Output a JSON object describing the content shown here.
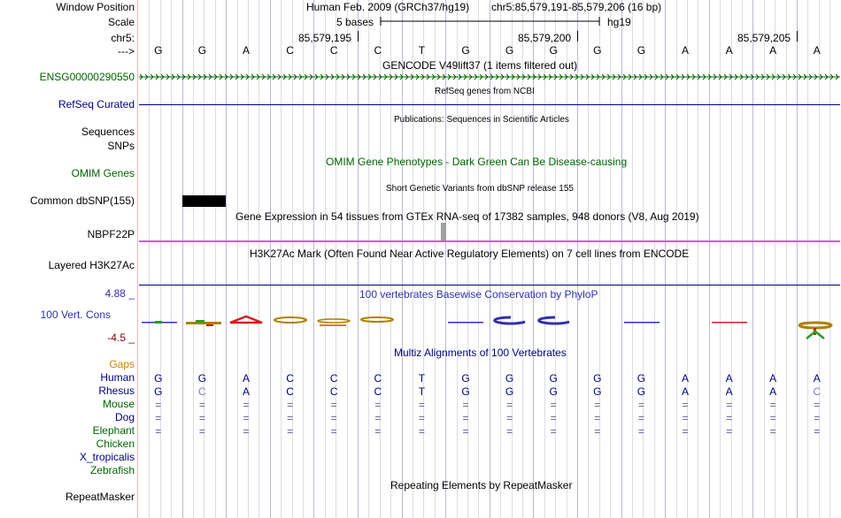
{
  "labels": {
    "window_position": "Window Position",
    "scale": "Scale",
    "chr": "chr5:",
    "arrow": "--->",
    "gencode": "ENSG00000290550",
    "refseq": "RefSeq Curated",
    "sequences": "Sequences",
    "snps": "SNPs",
    "omim": "OMIM Genes",
    "dbsnp": "Common dbSNP(155)",
    "gtex": "NBPF22P",
    "h3k27ac": "Layered H3K27Ac",
    "cons_max": "4.88 _",
    "cons": "100 Vert. Cons",
    "cons_min": "-4.5 _",
    "gaps": "Gaps",
    "human": "Human",
    "rhesus": "Rhesus",
    "mouse": "Mouse",
    "dog": "Dog",
    "elephant": "Elephant",
    "chicken": "Chicken",
    "xtrop": "X_tropicalis",
    "zebrafish": "Zebrafish",
    "repeatmasker": "RepeatMasker"
  },
  "header": {
    "assembly": "Human Feb. 2009 (GRCh37/hg19)",
    "position": "chr5:85,579,191-85,579,206 (16 bp)",
    "scale_text": "5 bases",
    "scale_db": "hg19",
    "coord1": "85,579,195",
    "coord2": "85,579,200",
    "coord3": "85,579,205"
  },
  "tracks": {
    "gencode_title": "GENCODE V49lift37 (1 items filtered out)",
    "refseq_title": "RefSeq genes from NCBI",
    "pubs_title": "Publications: Sequences in Scientific Articles",
    "omim_title": "OMIM Gene Phenotypes - Dark Green Can Be Disease-causing",
    "dbsnp_title": "Short Genetic Variants from dbSNP release 155",
    "gtex_title": "Gene Expression in 54 tissues from GTEx RNA-seq of 17382 samples, 948 donors (V8, Aug 2019)",
    "h3k27ac_title": "H3K27Ac Mark (Often Found Near Active Regulatory Elements) on 7 cell lines from ENCODE",
    "cons_title": "100 vertebrates Basewise Conservation by PhyloP",
    "multiz_title": "Multiz Alignments of 100 Vertebrates",
    "repeat_title": "Repeating Elements by RepeatMasker"
  },
  "sequence": [
    "G",
    "G",
    "A",
    "C",
    "C",
    "C",
    "T",
    "G",
    "G",
    "G",
    "G",
    "G",
    "A",
    "A",
    "A",
    "A"
  ],
  "align": {
    "human": [
      "G",
      "G",
      "A",
      "C",
      "C",
      "C",
      "T",
      "G",
      "G",
      "G",
      "G",
      "G",
      "A",
      "A",
      "A",
      "A"
    ],
    "rhesus": [
      "G",
      "C",
      "A",
      "C",
      "C",
      "C",
      "T",
      "G",
      "G",
      "G",
      "G",
      "G",
      "A",
      "A",
      "A",
      "C"
    ],
    "mouse": [
      "=",
      "=",
      "=",
      "=",
      "=",
      "=",
      "=",
      "=",
      "=",
      "=",
      "=",
      "=",
      "=",
      "=",
      "=",
      "="
    ],
    "dog": [
      "=",
      "=",
      "=",
      "=",
      "=",
      "=",
      "=",
      "=",
      "=",
      "=",
      "=",
      "=",
      "=",
      "=",
      "=",
      "="
    ],
    "elephant": [
      "=",
      "=",
      "=",
      "=",
      "=",
      "=",
      "=",
      "=",
      "=",
      "=",
      "=",
      "=",
      "=",
      "=",
      "=",
      "="
    ]
  },
  "colors": {
    "label_blue": "#000080",
    "label_green": "#006400",
    "gaps_orange": "#d08000",
    "h3k27ac_magenta": "#e050e0",
    "cons_blue": "#3030b0",
    "cons_red": "#800000"
  }
}
